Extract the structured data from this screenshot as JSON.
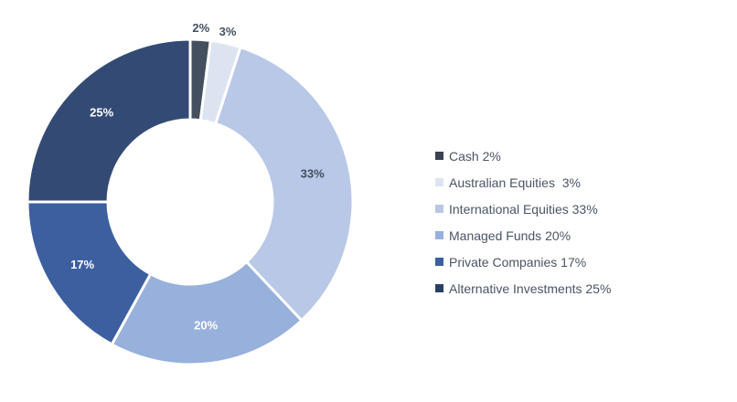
{
  "chart_data": {
    "type": "pie",
    "variant": "donut",
    "categories": [
      "Cash",
      "Australian Equities",
      "International Equities",
      "Managed Funds",
      "Private Companies",
      "Alternative Investments"
    ],
    "values": [
      2,
      3,
      33,
      20,
      17,
      25
    ],
    "unit": "%",
    "slice_labels": [
      "2%",
      "3%",
      "33%",
      "20%",
      "17%",
      "25%"
    ],
    "legend_entries": [
      "Cash 2%",
      "Australian Equities  3%",
      "International Equities 33%",
      "Managed Funds 20%",
      "Private Companies 17%",
      "Alternative Investments 25%"
    ],
    "colors": [
      "#44505f",
      "#dde4f1",
      "#b8c8e6",
      "#97b0dc",
      "#3c5fa0",
      "#334b74"
    ],
    "label_colors": [
      "#44505f",
      "#44505f",
      "#44505f",
      "#ffffff",
      "#ffffff",
      "#ffffff"
    ],
    "legend_swatch_colors": [
      "#3a4352",
      "#dde4f1",
      "#b8c8e6",
      "#97b0dc",
      "#3c5fa0",
      "#2b3f63"
    ],
    "legend_position": "right",
    "start_angle": "top",
    "direction": "clockwise"
  }
}
